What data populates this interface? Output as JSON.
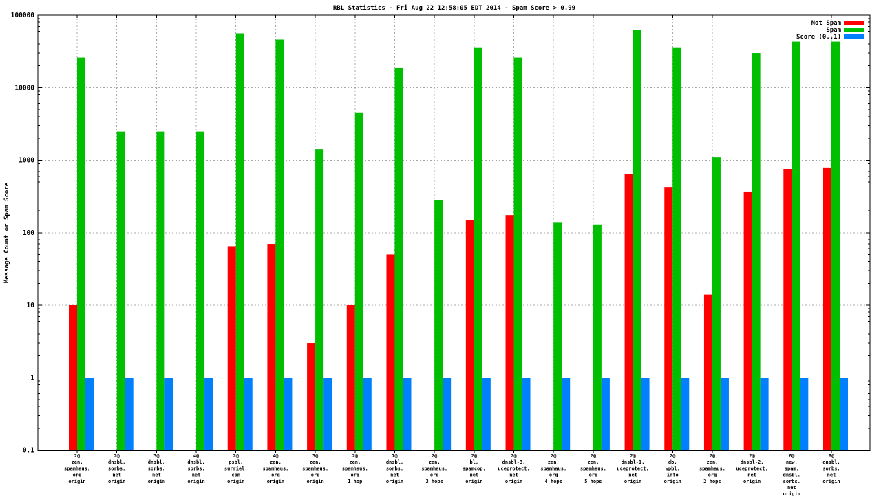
{
  "chart_data": {
    "type": "bar",
    "title": "RBL Statistics - Fri Aug 22 12:58:05 EDT 2014 - Spam Score > 0.99",
    "ylabel": "Message Count or Spam Score",
    "xlabel": "",
    "y_scale": "log",
    "ylim": [
      0.1,
      100000
    ],
    "y_ticks": [
      0.1,
      1,
      10,
      100,
      1000,
      10000,
      100000
    ],
    "y_tick_labels": [
      "0.1",
      "1",
      "10",
      "100",
      "1000",
      "10000",
      "100000"
    ],
    "grid": true,
    "legend_position": "top-right-inside",
    "grid_color": "#a8a8a8",
    "background": "#ffffff",
    "categories": [
      [
        "2@",
        "zen.",
        "spamhaus.",
        "org",
        "origin"
      ],
      [
        "2@",
        "dnsbl.",
        "sorbs.",
        "net",
        "origin"
      ],
      [
        "3@",
        "dnsbl.",
        "sorbs.",
        "net",
        "origin"
      ],
      [
        "4@",
        "dnsbl.",
        "sorbs.",
        "net",
        "origin"
      ],
      [
        "2@",
        "psbl.",
        "surriel.",
        "com",
        "origin"
      ],
      [
        "4@",
        "zen.",
        "spamhaus.",
        "org",
        "origin"
      ],
      [
        "3@",
        "zen.",
        "spamhaus.",
        "org",
        "origin"
      ],
      [
        "2@",
        "zen.",
        "spamhaus.",
        "org",
        "1 hop"
      ],
      [
        "7@",
        "dnsbl.",
        "sorbs.",
        "net",
        "origin"
      ],
      [
        "2@",
        "zen.",
        "spamhaus.",
        "org",
        "3 hops"
      ],
      [
        "2@",
        "bl.",
        "spamcop.",
        "net",
        "origin"
      ],
      [
        "2@",
        "dnsbl-3.",
        "uceprotect.",
        "net",
        "origin"
      ],
      [
        "2@",
        "zen.",
        "spamhaus.",
        "org",
        "4 hops"
      ],
      [
        "2@",
        "zen.",
        "spamhaus.",
        "org",
        "5 hops"
      ],
      [
        "2@",
        "dnsbl-1.",
        "uceprotect.",
        "net",
        "origin"
      ],
      [
        "2@",
        "db.",
        "wpbl.",
        "info",
        "origin"
      ],
      [
        "2@",
        "zen.",
        "spamhaus.",
        "org",
        "2 hops"
      ],
      [
        "2@",
        "dnsbl-2.",
        "uceprotect.",
        "net",
        "origin"
      ],
      [
        "6@",
        "new.",
        "spam.",
        "dnsbl.",
        "sorbs.",
        "net",
        "origin"
      ],
      [
        "6@",
        "dnsbl.",
        "sorbs.",
        "net",
        "origin"
      ]
    ],
    "series": [
      {
        "name": "Not Spam",
        "color": "#ff0000",
        "values": [
          10,
          0,
          0,
          0,
          65,
          70,
          3,
          10,
          50,
          0,
          150,
          175,
          0,
          0,
          650,
          420,
          14,
          370,
          750,
          780
        ]
      },
      {
        "name": "Spam",
        "color": "#00be00",
        "values": [
          26000,
          2500,
          2500,
          2500,
          56000,
          46000,
          1400,
          4500,
          19000,
          280,
          36000,
          26000,
          140,
          130,
          63000,
          36000,
          1100,
          30000,
          43000,
          43000
        ]
      },
      {
        "name": "Score (0..1)",
        "color": "#0080ff",
        "values": [
          1,
          1,
          1,
          1,
          1,
          1,
          1,
          1,
          1,
          1,
          1,
          1,
          1,
          1,
          1,
          1,
          1,
          1,
          1,
          1
        ]
      }
    ]
  }
}
